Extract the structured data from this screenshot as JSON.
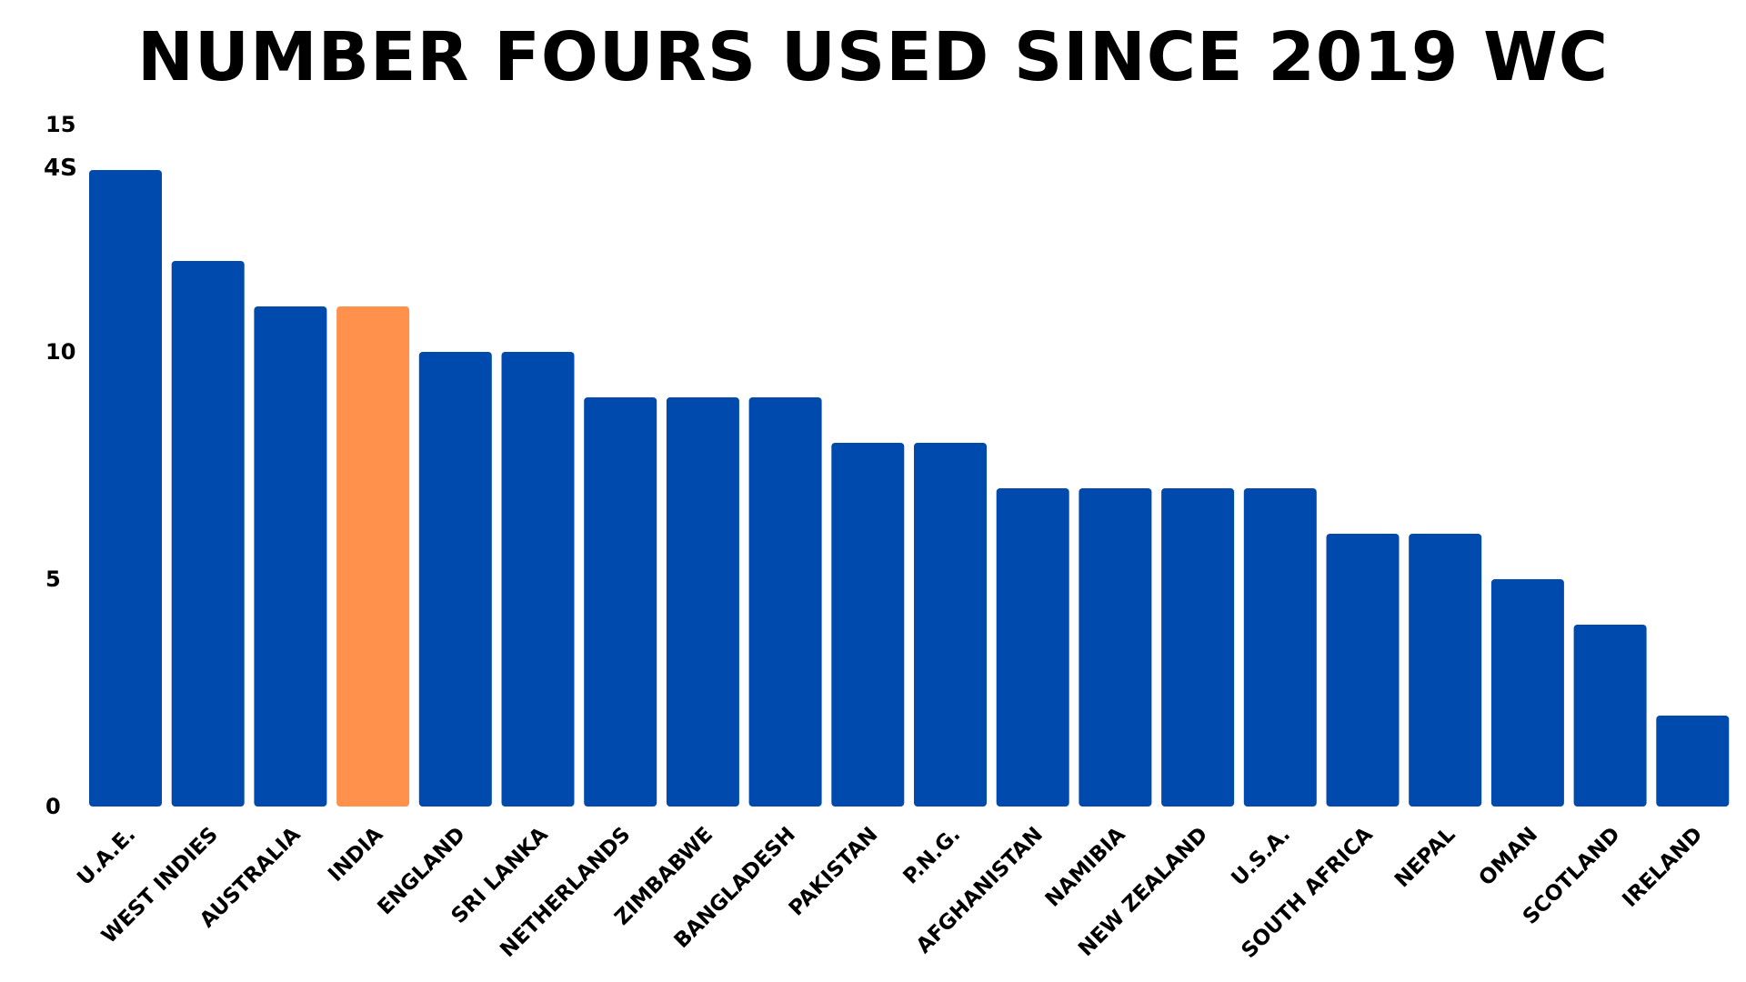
{
  "chart_data": {
    "type": "bar",
    "title": "NUMBER FOURS USED SINCE 2019 WC",
    "ylabel": "4S",
    "xlabel": "",
    "ylim": [
      0,
      15
    ],
    "yticks": [
      0,
      5,
      10,
      15
    ],
    "grid": false,
    "categories": [
      "U.A.E.",
      "WEST INDIES",
      "AUSTRALIA",
      "INDIA",
      "ENGLAND",
      "SRI LANKA",
      "NETHERLANDS",
      "ZIMBABWE",
      "BANGLADESH",
      "PAKISTAN",
      "P.N.G.",
      "AFGHANISTAN",
      "NAMIBIA",
      "NEW ZEALAND",
      "U.S.A.",
      "SOUTH AFRICA",
      "NEPAL",
      "OMAN",
      "SCOTLAND",
      "IRELAND"
    ],
    "values": [
      14,
      12,
      11,
      11,
      10,
      10,
      9,
      9,
      9,
      8,
      8,
      7,
      7,
      7,
      7,
      6,
      6,
      5,
      4,
      2
    ],
    "highlight_category": "INDIA",
    "colors": {
      "bar": "#014aad",
      "highlight": "#ff914d"
    }
  }
}
